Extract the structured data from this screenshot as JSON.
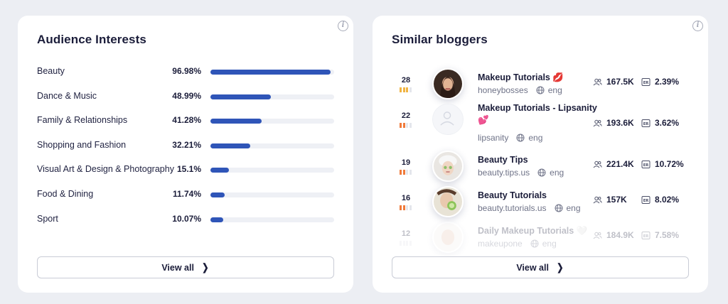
{
  "audience_interests": {
    "title": "Audience Interests",
    "view_all_label": "View all",
    "items": [
      {
        "label": "Beauty",
        "percent": "96.98%",
        "value": 96.98
      },
      {
        "label": "Dance & Music",
        "percent": "48.99%",
        "value": 48.99
      },
      {
        "label": "Family & Relationships",
        "percent": "41.28%",
        "value": 41.28
      },
      {
        "label": "Shopping and Fashion",
        "percent": "32.21%",
        "value": 32.21
      },
      {
        "label": "Visual Art & Design & Photography",
        "percent": "15.1%",
        "value": 15.1
      },
      {
        "label": "Food & Dining",
        "percent": "11.74%",
        "value": 11.74
      },
      {
        "label": "Sport",
        "percent": "10.07%",
        "value": 10.07
      }
    ]
  },
  "similar_bloggers": {
    "title": "Similar bloggers",
    "view_all_label": "View all",
    "items": [
      {
        "rank": "28",
        "name": "Makeup Tutorials 💋",
        "handle": "honeybosses",
        "lang": "eng",
        "followers": "167.5K",
        "er": "2.39%",
        "bars": [
          "#f0b443",
          "#f0b443",
          "#f0b443",
          "#e4e6ec"
        ]
      },
      {
        "rank": "22",
        "name": "Makeup Tutorials - Lipsanity",
        "name_line2": "💕",
        "handle": "lipsanity",
        "lang": "eng",
        "followers": "193.6K",
        "er": "3.62%",
        "bars": [
          "#f07a3a",
          "#f07a3a",
          "#e4e6ec",
          "#e4e6ec"
        ]
      },
      {
        "rank": "19",
        "name": "Beauty Tips",
        "handle": "beauty.tips.us",
        "lang": "eng",
        "followers": "221.4K",
        "er": "10.72%",
        "bars": [
          "#f07a3a",
          "#f07a3a",
          "#e4e6ec",
          "#e4e6ec"
        ]
      },
      {
        "rank": "16",
        "name": "Beauty Tutorials",
        "handle": "beauty.tutorials.us",
        "lang": "eng",
        "followers": "157K",
        "er": "8.02%",
        "bars": [
          "#f07a3a",
          "#f07a3a",
          "#e4e6ec",
          "#e4e6ec"
        ]
      },
      {
        "rank": "12",
        "name": "Daily Makeup Tutorials 🤍",
        "handle": "makeupone",
        "lang": "eng",
        "followers": "184.9K",
        "er": "7.58%",
        "bars": [
          "#e4e6ec",
          "#e4e6ec",
          "#e4e6ec",
          "#e4e6ec"
        ]
      }
    ]
  },
  "colors": {
    "accent": "#2f55b8",
    "track": "#eef0f5",
    "background": "#eceef3"
  },
  "icons": {
    "info": "info-icon",
    "globe": "globe-icon",
    "followers": "followers-icon",
    "engagement": "er-icon",
    "chevron": "chevron-right-icon"
  }
}
